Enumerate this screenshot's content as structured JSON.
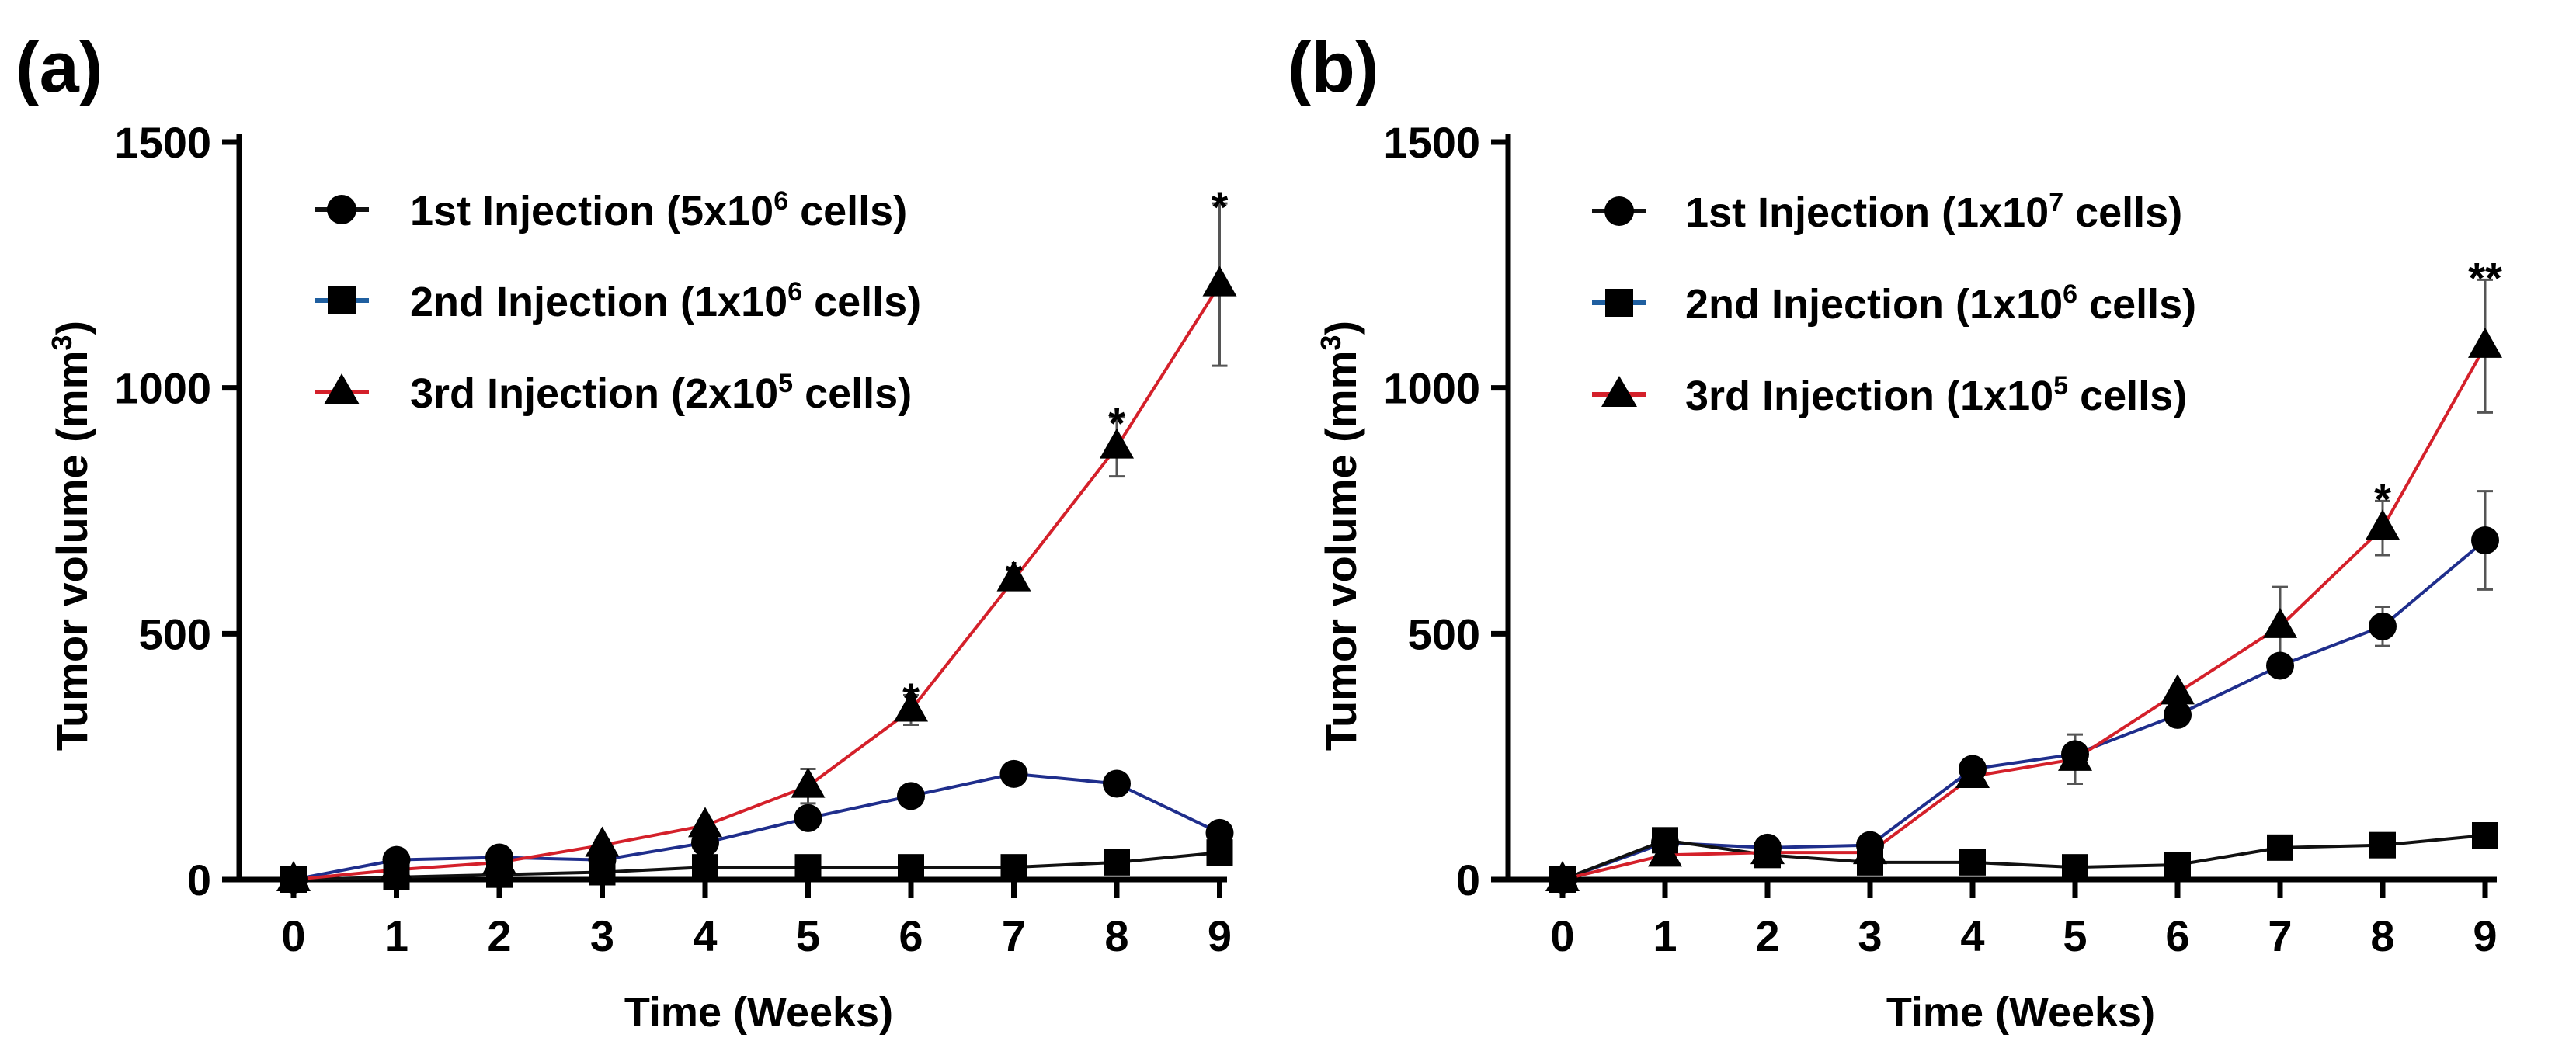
{
  "colors": {
    "axis": "#000000",
    "black_line": "#111111",
    "blue_line": "#1f2e8c",
    "red_line": "#d4202a",
    "marker": "#000000",
    "error_bar": "#555555"
  },
  "chart_data": [
    {
      "panel_label": "(a)",
      "type": "line",
      "xlabel": "Time (Weeks)",
      "ylabel": "Tumor volume (mm",
      "ylabel_sup": "3",
      "ylabel_close": ")",
      "xlim": [
        0,
        9
      ],
      "ylim": [
        0,
        1500
      ],
      "x": [
        0,
        1,
        2,
        3,
        4,
        5,
        6,
        7,
        8,
        9
      ],
      "x_ticks": [
        "0",
        "1",
        "2",
        "3",
        "4",
        "5",
        "6",
        "7",
        "8",
        "9"
      ],
      "y_ticks": [
        "0",
        "500",
        "1000",
        "1500"
      ],
      "legend_position": "top-left",
      "series": [
        {
          "legend_pre": "1st Injection (5x10",
          "legend_sup": "6",
          "legend_post": " cells)",
          "marker": "circle",
          "color_key": "blue_line",
          "values": [
            0,
            40,
            45,
            40,
            75,
            125,
            170,
            215,
            195,
            95
          ],
          "errors": [
            0,
            5,
            5,
            8,
            8,
            10,
            10,
            10,
            10,
            12
          ]
        },
        {
          "legend_pre": "2nd Injection (1x10",
          "legend_sup": "6",
          "legend_post": " cells)",
          "marker": "square",
          "color_key": "black_line",
          "values": [
            0,
            5,
            10,
            15,
            25,
            25,
            25,
            25,
            35,
            55
          ],
          "errors": [
            0,
            2,
            2,
            3,
            3,
            3,
            3,
            3,
            5,
            8
          ]
        },
        {
          "legend_pre": "3rd Injection (2x10",
          "legend_sup": "5",
          "legend_post": " cells)",
          "marker": "triangle",
          "color_key": "red_line",
          "values": [
            0,
            20,
            35,
            70,
            110,
            190,
            345,
            610,
            880,
            1210
          ],
          "errors": [
            0,
            5,
            5,
            10,
            10,
            35,
            30,
            20,
            60,
            165
          ]
        }
      ],
      "annotations": [
        {
          "x": 6,
          "y": 385,
          "text": "*"
        },
        {
          "x": 7,
          "y": 632,
          "text": "*"
        },
        {
          "x": 8,
          "y": 945,
          "text": "*"
        },
        {
          "x": 9,
          "y": 1385,
          "text": "*"
        }
      ]
    },
    {
      "panel_label": "(b)",
      "type": "line",
      "xlabel": "Time (Weeks)",
      "ylabel": "Tumor volume (mm",
      "ylabel_sup": "3",
      "ylabel_close": ")",
      "xlim": [
        0,
        9
      ],
      "ylim": [
        0,
        1500
      ],
      "x": [
        0,
        1,
        2,
        3,
        4,
        5,
        6,
        7,
        8,
        9
      ],
      "x_ticks": [
        "0",
        "1",
        "2",
        "3",
        "4",
        "5",
        "6",
        "7",
        "8",
        "9"
      ],
      "y_ticks": [
        "0",
        "500",
        "1000",
        "1500"
      ],
      "legend_position": "top-left",
      "series": [
        {
          "legend_pre": "1st Injection (1x10",
          "legend_sup": "7",
          "legend_post": " cells)",
          "marker": "circle",
          "color_key": "blue_line",
          "values": [
            0,
            75,
            65,
            70,
            225,
            255,
            335,
            435,
            515,
            690
          ],
          "errors": [
            0,
            5,
            5,
            5,
            10,
            10,
            10,
            15,
            40,
            100
          ]
        },
        {
          "legend_pre": "2nd Injection (1x10",
          "legend_sup": "6",
          "legend_post": " cells)",
          "marker": "square",
          "color_key": "black_line",
          "values": [
            0,
            80,
            50,
            35,
            35,
            25,
            30,
            65,
            70,
            90
          ],
          "errors": [
            0,
            5,
            5,
            5,
            5,
            5,
            5,
            5,
            5,
            5
          ]
        },
        {
          "legend_pre": "3rd Injection (1x10",
          "legend_sup": "5",
          "legend_post": " cells)",
          "marker": "triangle",
          "color_key": "red_line",
          "values": [
            0,
            50,
            55,
            55,
            210,
            245,
            380,
            515,
            715,
            1085
          ],
          "errors": [
            0,
            5,
            5,
            5,
            10,
            50,
            10,
            80,
            55,
            135
          ]
        }
      ],
      "annotations": [
        {
          "x": 8,
          "y": 790,
          "text": "*"
        },
        {
          "x": 9,
          "y": 1240,
          "text": "**"
        }
      ]
    }
  ]
}
